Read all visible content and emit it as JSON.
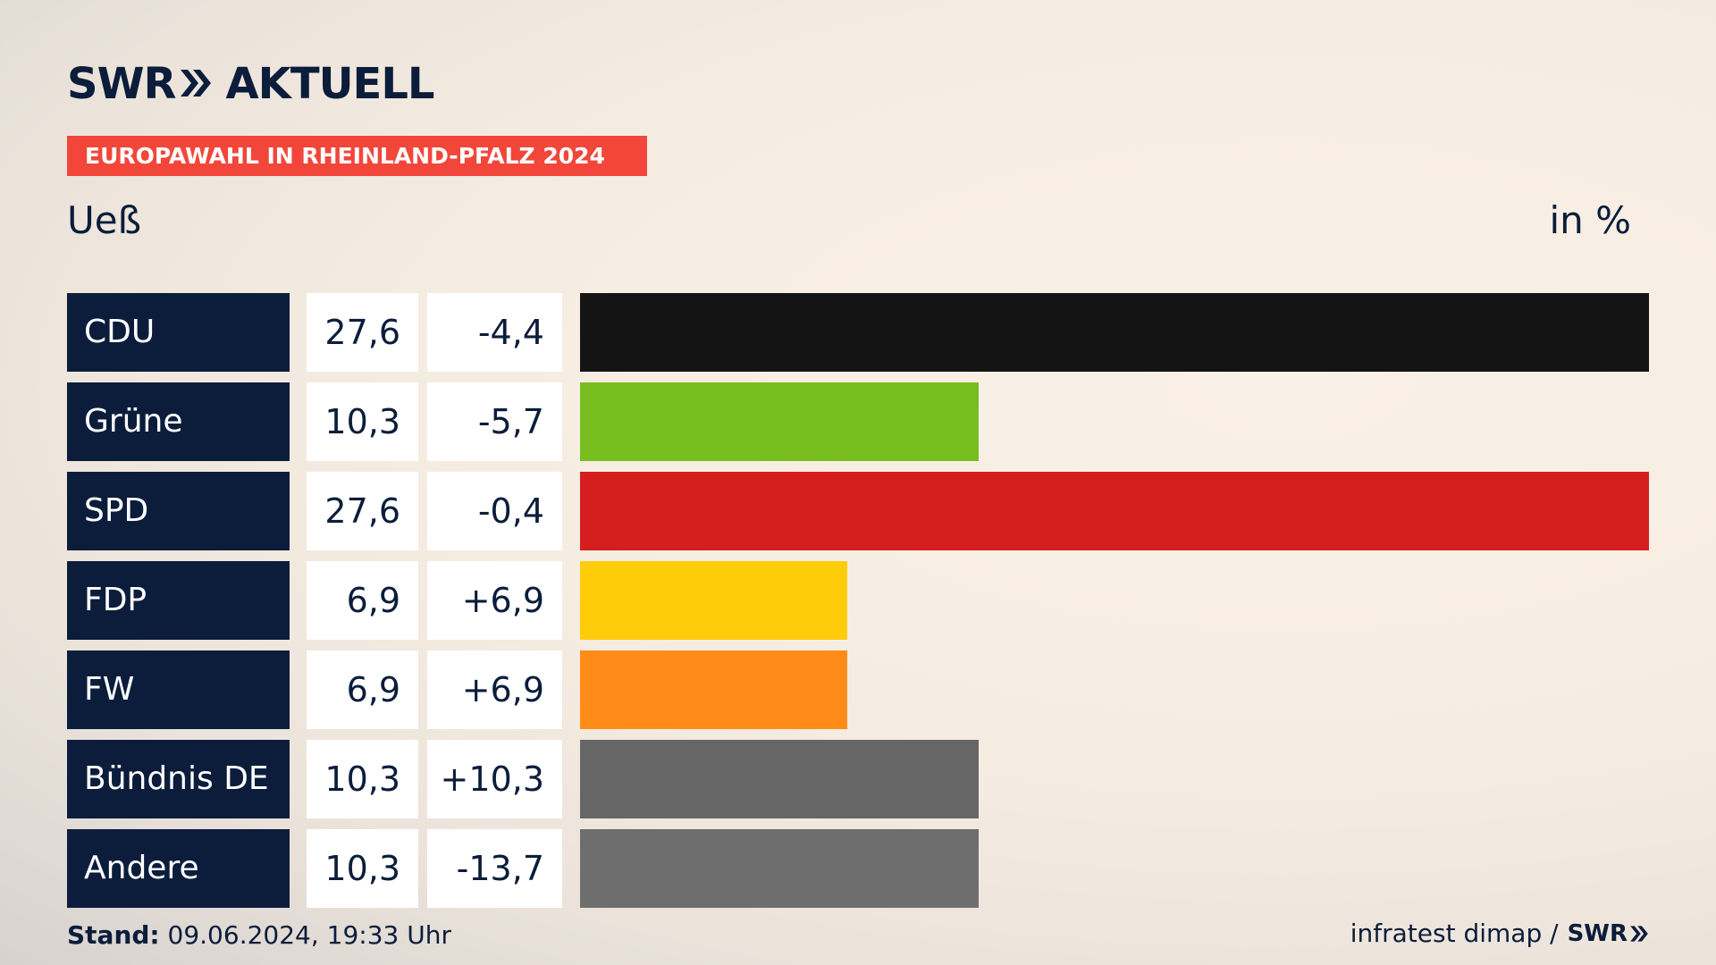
{
  "header": {
    "brand": "SWR",
    "brand_suffix": "AKTUELL",
    "banner": "EUROPAWAHL IN RHEINLAND-PFALZ 2024",
    "subject": "Ueß",
    "unit": "in %"
  },
  "footer": {
    "stand_label": "Stand:",
    "stand_value": "09.06.2024, 19:33 Uhr",
    "source": "infratest dimap /",
    "source_brand": "SWR"
  },
  "colors": {
    "CDU": "#141414",
    "Grüne": "#78be1e",
    "SPD": "#d51f1f",
    "FDP": "#ffcc0a",
    "FW": "#ff8c19",
    "Bündnis DE": "#666666",
    "Andere": "#6e6e6e"
  },
  "chart_data": {
    "type": "bar",
    "orientation": "horizontal",
    "title": "Ueß",
    "unit": "in %",
    "categories": [
      "CDU",
      "Grüne",
      "SPD",
      "FDP",
      "FW",
      "Bündnis DE",
      "Andere"
    ],
    "values": [
      27.6,
      10.3,
      27.6,
      6.9,
      6.9,
      10.3,
      10.3
    ],
    "value_labels": [
      "27,6",
      "10,3",
      "27,6",
      "6,9",
      "6,9",
      "10,3",
      "10,3"
    ],
    "differences": [
      "-4,4",
      "-5,7",
      "-0,4",
      "+6,9",
      "+6,9",
      "+10,3",
      "-13,7"
    ],
    "xlim": [
      0,
      27.6
    ]
  }
}
